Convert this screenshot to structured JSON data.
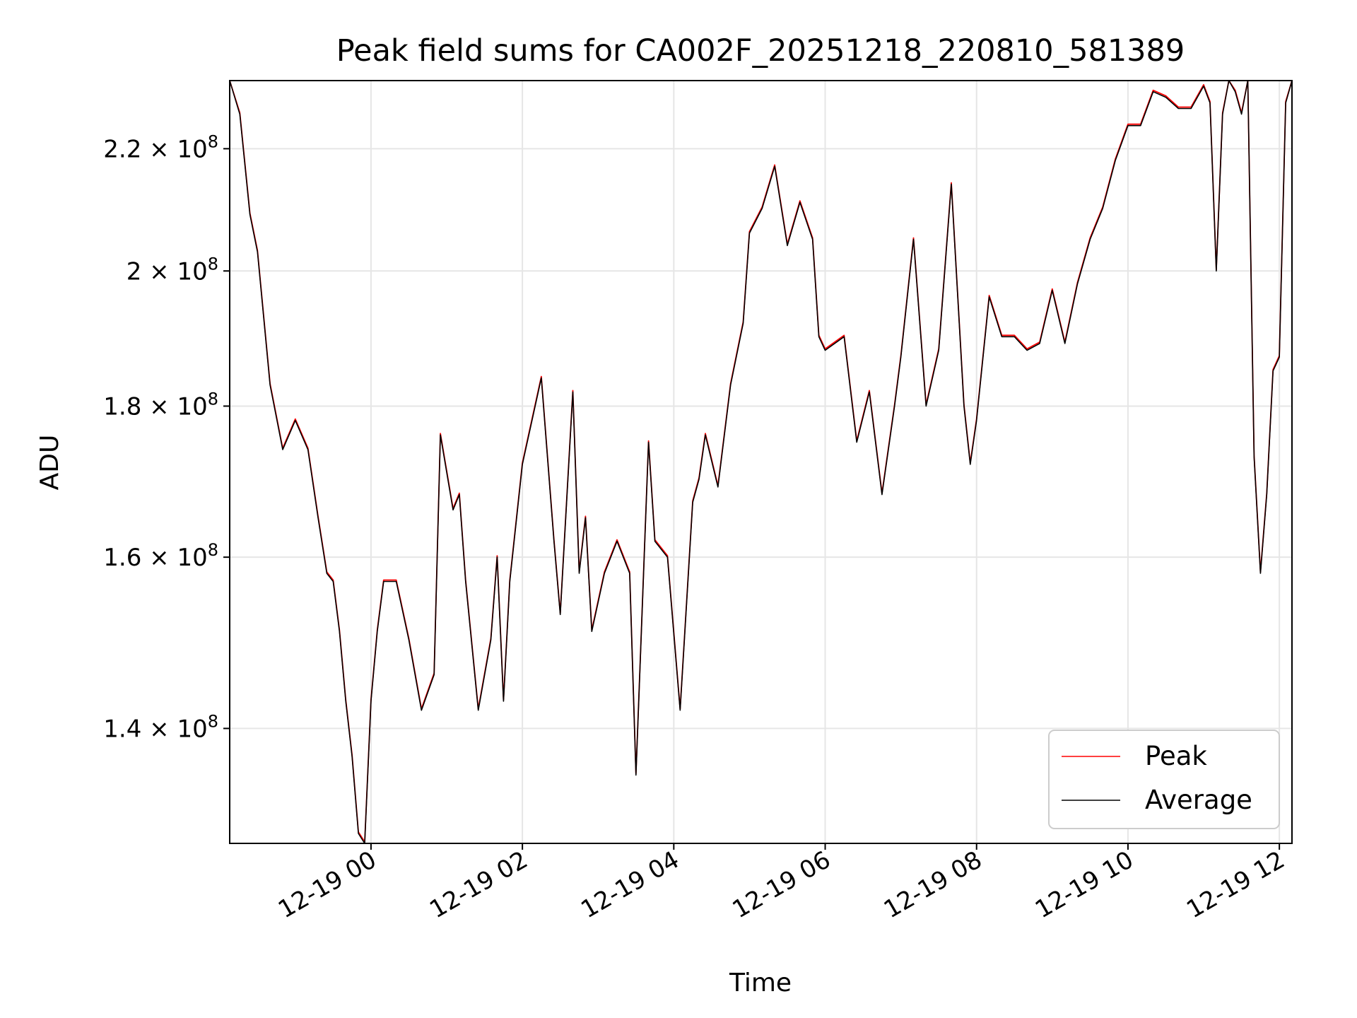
{
  "chart_data": {
    "type": "line",
    "title": "Peak field sums for CA002F_20251218_220810_581389",
    "xlabel": "Time",
    "ylabel": "ADU",
    "x_axis_type": "time",
    "x_start": "2025-12-18T22:08",
    "x_end": "2025-12-19T12:10",
    "xlim": [
      "2025-12-18T22:08",
      "2025-12-19T12:10"
    ],
    "y_scale": "log",
    "ylim": [
      128000000,
      232000000
    ],
    "grid": true,
    "legend_position": "lower-right",
    "x_ticks": [
      {
        "value": "2025-12-19T00:00",
        "label": "12-19 00"
      },
      {
        "value": "2025-12-19T02:00",
        "label": "12-19 02"
      },
      {
        "value": "2025-12-19T04:00",
        "label": "12-19 04"
      },
      {
        "value": "2025-12-19T06:00",
        "label": "12-19 06"
      },
      {
        "value": "2025-12-19T08:00",
        "label": "12-19 08"
      },
      {
        "value": "2025-12-19T10:00",
        "label": "12-19 10"
      },
      {
        "value": "2025-12-19T12:00",
        "label": "12-19 12"
      }
    ],
    "y_ticks": [
      {
        "value": 140000000,
        "label": "1.4 × 10^8",
        "mantissa": "1.4",
        "exponent": "8"
      },
      {
        "value": 160000000,
        "label": "1.6 × 10^8",
        "mantissa": "1.6",
        "exponent": "8"
      },
      {
        "value": 180000000,
        "label": "1.8 × 10^8",
        "mantissa": "1.8",
        "exponent": "8"
      },
      {
        "value": 200000000,
        "label": "2 × 10^8",
        "mantissa": "2",
        "exponent": "8"
      },
      {
        "value": 220000000,
        "label": "2.2 × 10^8",
        "mantissa": "2.2",
        "exponent": "8"
      }
    ],
    "series": [
      {
        "name": "Peak",
        "color": "#ff0000"
      },
      {
        "name": "Average",
        "color": "#000000"
      }
    ],
    "x": [
      "2025-12-18T22:08",
      "2025-12-18T22:16",
      "2025-12-18T22:24",
      "2025-12-18T22:30",
      "2025-12-18T22:40",
      "2025-12-18T22:50",
      "2025-12-18T23:00",
      "2025-12-18T23:05",
      "2025-12-18T23:10",
      "2025-12-18T23:18",
      "2025-12-18T23:25",
      "2025-12-18T23:30",
      "2025-12-18T23:35",
      "2025-12-18T23:40",
      "2025-12-18T23:45",
      "2025-12-18T23:50",
      "2025-12-18T23:55",
      "2025-12-19T00:00",
      "2025-12-19T00:05",
      "2025-12-19T00:10",
      "2025-12-19T00:20",
      "2025-12-19T00:30",
      "2025-12-19T00:40",
      "2025-12-19T00:50",
      "2025-12-19T00:55",
      "2025-12-19T01:05",
      "2025-12-19T01:10",
      "2025-12-19T01:15",
      "2025-12-19T01:25",
      "2025-12-19T01:35",
      "2025-12-19T01:40",
      "2025-12-19T01:45",
      "2025-12-19T01:50",
      "2025-12-19T02:00",
      "2025-12-19T02:15",
      "2025-12-19T02:25",
      "2025-12-19T02:30",
      "2025-12-19T02:40",
      "2025-12-19T02:45",
      "2025-12-19T02:50",
      "2025-12-19T02:55",
      "2025-12-19T03:05",
      "2025-12-19T03:15",
      "2025-12-19T03:25",
      "2025-12-19T03:30",
      "2025-12-19T03:40",
      "2025-12-19T03:45",
      "2025-12-19T03:55",
      "2025-12-19T04:05",
      "2025-12-19T04:15",
      "2025-12-19T04:20",
      "2025-12-19T04:25",
      "2025-12-19T04:35",
      "2025-12-19T04:45",
      "2025-12-19T04:55",
      "2025-12-19T05:00",
      "2025-12-19T05:10",
      "2025-12-19T05:20",
      "2025-12-19T05:30",
      "2025-12-19T05:40",
      "2025-12-19T05:50",
      "2025-12-19T05:55",
      "2025-12-19T06:00",
      "2025-12-19T06:15",
      "2025-12-19T06:25",
      "2025-12-19T06:35",
      "2025-12-19T06:45",
      "2025-12-19T06:55",
      "2025-12-19T07:00",
      "2025-12-19T07:10",
      "2025-12-19T07:20",
      "2025-12-19T07:30",
      "2025-12-19T07:40",
      "2025-12-19T07:50",
      "2025-12-19T07:55",
      "2025-12-19T08:00",
      "2025-12-19T08:10",
      "2025-12-19T08:20",
      "2025-12-19T08:30",
      "2025-12-19T08:40",
      "2025-12-19T08:50",
      "2025-12-19T09:00",
      "2025-12-19T09:10",
      "2025-12-19T09:20",
      "2025-12-19T09:30",
      "2025-12-19T09:40",
      "2025-12-19T09:50",
      "2025-12-19T10:00",
      "2025-12-19T10:10",
      "2025-12-19T10:20",
      "2025-12-19T10:30",
      "2025-12-19T10:40",
      "2025-12-19T10:50",
      "2025-12-19T11:00",
      "2025-12-19T11:05",
      "2025-12-19T11:10",
      "2025-12-19T11:15",
      "2025-12-19T11:20",
      "2025-12-19T11:25",
      "2025-12-19T11:30",
      "2025-12-19T11:35",
      "2025-12-19T11:40",
      "2025-12-19T11:45",
      "2025-12-19T11:50",
      "2025-12-19T11:55",
      "2025-12-19T12:00",
      "2025-12-19T12:05",
      "2025-12-19T12:10"
    ],
    "y": [
      232,
      226,
      209,
      203,
      183,
      174,
      178,
      176,
      174,
      165,
      158,
      157,
      151,
      143,
      137,
      129,
      128,
      143,
      151,
      157,
      157,
      150,
      142,
      146,
      176,
      166,
      168,
      157,
      142,
      150,
      160,
      143,
      157,
      172,
      184,
      162,
      153,
      182,
      158,
      165,
      151,
      158,
      162,
      158,
      135,
      175,
      162,
      160,
      142,
      167,
      170,
      176,
      169,
      183,
      192,
      206,
      210,
      217,
      204,
      211,
      205,
      190,
      188,
      190,
      175,
      182,
      168,
      180,
      187,
      205,
      180,
      188,
      214,
      180,
      172,
      178,
      196,
      190,
      190,
      188,
      189,
      197,
      189,
      198,
      205,
      210,
      218,
      224,
      224,
      230,
      229,
      227,
      227,
      231,
      228,
      200,
      226,
      233,
      230,
      226,
      233,
      173,
      158,
      168,
      185,
      187,
      228,
      233
    ]
  }
}
